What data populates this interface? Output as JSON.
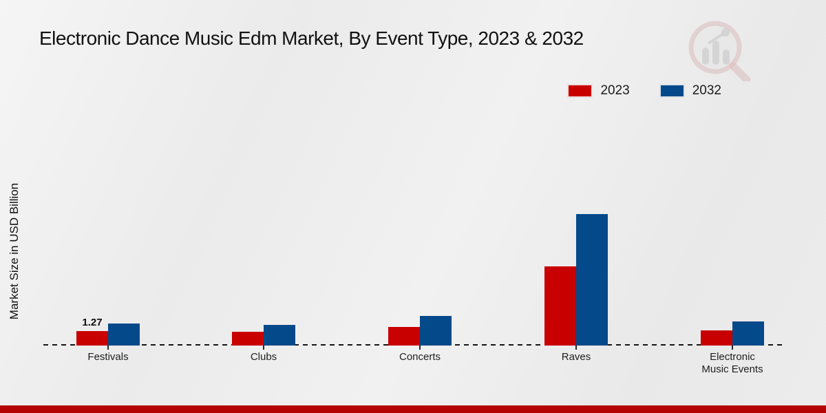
{
  "title": "Electronic Dance Music Edm Market, By Event Type, 2023 & 2032",
  "y_axis_label": "Market Size in USD Billion",
  "legend": [
    {
      "label": "2023",
      "color": "#c80000"
    },
    {
      "label": "2032",
      "color": "#04498a"
    }
  ],
  "colors": {
    "series_2023": "#c80000",
    "series_2032": "#04498a",
    "footer_bar": "#b40404",
    "background": "#ededed",
    "text": "#111111"
  },
  "watermark_icon": "market-research-magnifier-bar-chart-logo",
  "chart_data": {
    "type": "bar",
    "title": "Electronic Dance Music Edm Market, By Event Type, 2023 & 2032",
    "xlabel": "",
    "ylabel": "Market Size in USD Billion",
    "categories": [
      "Festivals",
      "Clubs",
      "Concerts",
      "Raves",
      "Electronic Music Events"
    ],
    "series": [
      {
        "name": "2023",
        "color": "#c80000",
        "values": [
          1.27,
          1.24,
          1.67,
          7.1,
          1.36
        ]
      },
      {
        "name": "2032",
        "color": "#04498a",
        "values": [
          1.97,
          1.85,
          2.68,
          11.79,
          2.16
        ]
      }
    ],
    "data_labels": [
      {
        "category": "Festivals",
        "series": "2023",
        "text": "1.27"
      }
    ],
    "ylim": [
      0,
      13
    ],
    "grid": false,
    "axis_line_style": "dashed",
    "legend_position": "top-right"
  }
}
